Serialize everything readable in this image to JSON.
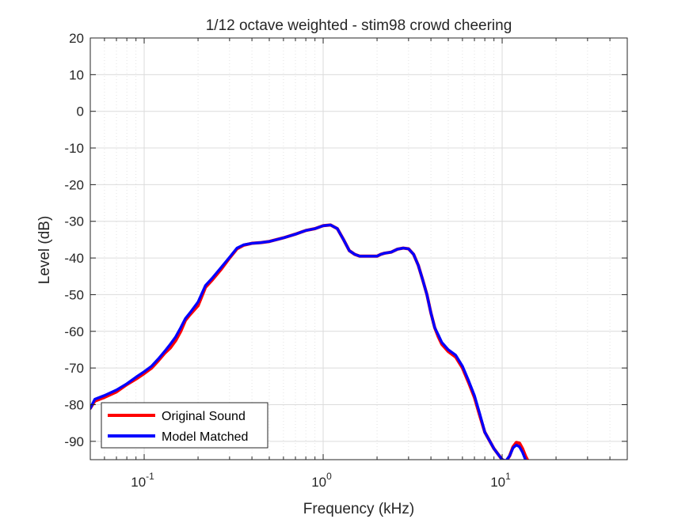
{
  "chart_data": {
    "type": "line",
    "title": "1/12 octave weighted - stim98 crowd cheering",
    "xlabel": "Frequency (kHz)",
    "ylabel": "Level (dB)",
    "x_scale": "log",
    "xlim": [
      0.05,
      50
    ],
    "ylim": [
      -95,
      20
    ],
    "grid": true,
    "minor_grid": true,
    "legend_position": "bottom-left",
    "yticks": [
      20,
      10,
      0,
      -10,
      -20,
      -30,
      -40,
      -50,
      -60,
      -70,
      -80,
      -90
    ],
    "xticks": [
      0.1,
      1,
      10
    ],
    "xtick_labels": [
      {
        "base": "10",
        "exp": "-1"
      },
      {
        "base": "10",
        "exp": "0"
      },
      {
        "base": "10",
        "exp": "1"
      }
    ],
    "series": [
      {
        "name": "Original Sound",
        "color": "#ff0000",
        "x": [
          0.05,
          0.053,
          0.06,
          0.07,
          0.08,
          0.09,
          0.1,
          0.11,
          0.12,
          0.13,
          0.14,
          0.15,
          0.16,
          0.17,
          0.18,
          0.2,
          0.22,
          0.24,
          0.27,
          0.3,
          0.33,
          0.36,
          0.4,
          0.45,
          0.5,
          0.6,
          0.7,
          0.8,
          0.9,
          1.0,
          1.1,
          1.2,
          1.3,
          1.4,
          1.5,
          1.6,
          1.7,
          1.8,
          1.9,
          2.0,
          2.1,
          2.2,
          2.4,
          2.6,
          2.8,
          3.0,
          3.2,
          3.4,
          3.6,
          3.8,
          4.0,
          4.2,
          4.4,
          4.6,
          5.0,
          5.5,
          6.0,
          6.5,
          7.0,
          7.5,
          8.0,
          9.0,
          10.0,
          10.5,
          11.0,
          11.5,
          12.0,
          12.5,
          13.0,
          13.5,
          14.0
        ],
        "y": [
          -81,
          -79,
          -78,
          -76.5,
          -74.5,
          -73,
          -71.5,
          -70,
          -68,
          -66,
          -64.5,
          -62.5,
          -60,
          -57,
          -55.5,
          -53,
          -48,
          -46,
          -43,
          -40,
          -37.5,
          -36.5,
          -36,
          -35.8,
          -35.5,
          -34.5,
          -33.5,
          -32.5,
          -32,
          -31.2,
          -31,
          -32,
          -35,
          -38,
          -39,
          -39.5,
          -39.5,
          -39.5,
          -39.5,
          -39.5,
          -39,
          -38.7,
          -38.4,
          -37.6,
          -37.3,
          -37.5,
          -39,
          -42,
          -46,
          -50,
          -55,
          -59,
          -61.5,
          -63.5,
          -65.5,
          -67,
          -70,
          -74,
          -78,
          -83,
          -87.5,
          -92,
          -95,
          -95.5,
          -94,
          -91.5,
          -90.3,
          -90.5,
          -92,
          -94,
          -95.5
        ]
      },
      {
        "name": "Model Matched",
        "color": "#0000ff",
        "x": [
          0.05,
          0.053,
          0.06,
          0.07,
          0.08,
          0.09,
          0.1,
          0.11,
          0.12,
          0.13,
          0.14,
          0.15,
          0.16,
          0.17,
          0.18,
          0.2,
          0.22,
          0.24,
          0.27,
          0.3,
          0.33,
          0.36,
          0.4,
          0.45,
          0.5,
          0.6,
          0.7,
          0.8,
          0.9,
          1.0,
          1.1,
          1.2,
          1.3,
          1.4,
          1.5,
          1.6,
          1.7,
          1.8,
          1.9,
          2.0,
          2.1,
          2.2,
          2.4,
          2.6,
          2.8,
          3.0,
          3.2,
          3.4,
          3.6,
          3.8,
          4.0,
          4.2,
          4.4,
          4.6,
          5.0,
          5.5,
          6.0,
          6.5,
          7.0,
          7.5,
          8.0,
          9.0,
          10.0,
          10.5,
          11.0,
          11.5,
          12.0,
          12.5,
          13.0,
          13.5,
          14.0
        ],
        "y": [
          -81,
          -78.5,
          -77.5,
          -76,
          -74.3,
          -72.5,
          -71,
          -69.5,
          -67.5,
          -65.5,
          -63.5,
          -61.5,
          -59,
          -56.5,
          -55,
          -52,
          -47.5,
          -45.5,
          -42.5,
          -39.8,
          -37.3,
          -36.4,
          -36,
          -35.8,
          -35.5,
          -34.5,
          -33.5,
          -32.5,
          -32,
          -31.2,
          -31,
          -32,
          -35,
          -38,
          -39,
          -39.5,
          -39.5,
          -39.5,
          -39.5,
          -39.5,
          -39,
          -38.7,
          -38.4,
          -37.6,
          -37.3,
          -37.5,
          -39,
          -42,
          -46,
          -50,
          -55,
          -59,
          -61,
          -63,
          -65,
          -66.5,
          -69.5,
          -73.5,
          -77.5,
          -82.5,
          -87.5,
          -92,
          -95,
          -95.3,
          -94,
          -91.8,
          -91,
          -91.5,
          -93,
          -95,
          -96
        ]
      }
    ]
  }
}
